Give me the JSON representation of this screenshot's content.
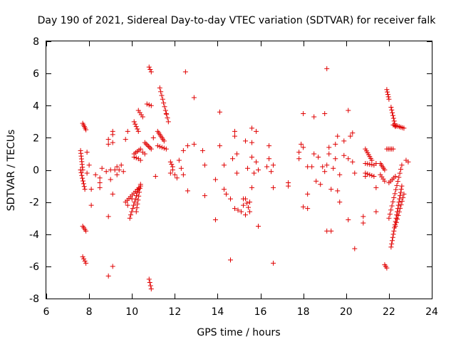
{
  "chart_data": {
    "type": "scatter",
    "title": "Day 190 of 2021, Sidereal Day-to-day VTEC variation (SDTVAR) for receiver falk",
    "xlabel": "GPS time / hours",
    "ylabel": "SDTVAR / TECUs",
    "xlim": [
      6,
      24
    ],
    "ylim": [
      -8,
      8
    ],
    "xticks": [
      6,
      8,
      10,
      12,
      14,
      16,
      18,
      20,
      22,
      24
    ],
    "yticks": [
      -8,
      -6,
      -4,
      -2,
      0,
      2,
      4,
      6,
      8
    ],
    "marker": "plus",
    "series_color": "#e00000",
    "segments": [
      {
        "x0": 7.6,
        "y0": 1.2,
        "x1": 7.7,
        "y1": 0.0,
        "n": 8
      },
      {
        "x0": 7.6,
        "y0": 0.0,
        "x1": 7.8,
        "y1": -1.2,
        "n": 8
      },
      {
        "x0": 7.7,
        "y0": 2.9,
        "x1": 7.85,
        "y1": 2.5,
        "n": 5
      },
      {
        "x0": 7.7,
        "y0": -3.5,
        "x1": 7.85,
        "y1": -3.8,
        "n": 4
      },
      {
        "x0": 7.7,
        "y0": -5.4,
        "x1": 7.85,
        "y1": -5.8,
        "n": 4
      },
      {
        "x0": 9.7,
        "y0": -2.0,
        "x1": 10.4,
        "y1": -1.0,
        "n": 10
      },
      {
        "x0": 9.9,
        "y0": -3.0,
        "x1": 10.3,
        "y1": -1.2,
        "n": 10
      },
      {
        "x0": 10.2,
        "y0": -2.6,
        "x1": 10.4,
        "y1": -0.9,
        "n": 8
      },
      {
        "x0": 10.1,
        "y0": 1.0,
        "x1": 10.4,
        "y1": 1.3,
        "n": 5
      },
      {
        "x0": 10.1,
        "y0": 0.8,
        "x1": 10.3,
        "y1": 0.7,
        "n": 3
      },
      {
        "x0": 10.1,
        "y0": 3.0,
        "x1": 10.3,
        "y1": 2.4,
        "n": 5
      },
      {
        "x0": 10.3,
        "y0": 3.7,
        "x1": 10.5,
        "y1": 3.3,
        "n": 4
      },
      {
        "x0": 10.6,
        "y0": 1.7,
        "x1": 10.9,
        "y1": 1.3,
        "n": 6
      },
      {
        "x0": 10.7,
        "y0": 4.1,
        "x1": 10.9,
        "y1": 4.0,
        "n": 3
      },
      {
        "x0": 10.8,
        "y0": 6.4,
        "x1": 10.9,
        "y1": 6.1,
        "n": 3
      },
      {
        "x0": 10.8,
        "y0": -6.8,
        "x1": 10.9,
        "y1": -7.4,
        "n": 4
      },
      {
        "x0": 11.2,
        "y0": 2.4,
        "x1": 11.5,
        "y1": 1.8,
        "n": 7
      },
      {
        "x0": 11.3,
        "y0": 5.1,
        "x1": 11.7,
        "y1": 3.0,
        "n": 10
      },
      {
        "x0": 11.2,
        "y0": 1.5,
        "x1": 11.6,
        "y1": 1.3,
        "n": 5
      },
      {
        "x0": 11.8,
        "y0": 0.5,
        "x1": 11.9,
        "y1": 0.2,
        "n": 3
      },
      {
        "x0": 15.3,
        "y0": -1.8,
        "x1": 15.5,
        "y1": -2.6,
        "n": 4
      },
      {
        "x0": 14.8,
        "y0": -2.4,
        "x1": 15.1,
        "y1": -2.6,
        "n": 3
      },
      {
        "x0": 20.9,
        "y0": 1.3,
        "x1": 21.2,
        "y1": 0.6,
        "n": 7
      },
      {
        "x0": 20.9,
        "y0": -0.2,
        "x1": 21.3,
        "y1": -0.4,
        "n": 5
      },
      {
        "x0": 20.9,
        "y0": 0.4,
        "x1": 21.3,
        "y1": 0.3,
        "n": 5
      },
      {
        "x0": 21.6,
        "y0": 0.4,
        "x1": 21.8,
        "y1": 0.0,
        "n": 5
      },
      {
        "x0": 21.6,
        "y0": -0.3,
        "x1": 21.8,
        "y1": -0.7,
        "n": 4
      },
      {
        "x0": 21.9,
        "y0": 5.0,
        "x1": 22.0,
        "y1": 4.4,
        "n": 5
      },
      {
        "x0": 22.1,
        "y0": 3.9,
        "x1": 22.3,
        "y1": 2.7,
        "n": 8
      },
      {
        "x0": 22.2,
        "y0": 2.8,
        "x1": 22.7,
        "y1": 2.6,
        "n": 8
      },
      {
        "x0": 21.9,
        "y0": 1.3,
        "x1": 22.2,
        "y1": 1.3,
        "n": 5
      },
      {
        "x0": 22.1,
        "y0": -4.8,
        "x1": 22.6,
        "y1": -1.0,
        "n": 20
      },
      {
        "x0": 22.0,
        "y0": -3.0,
        "x1": 22.6,
        "y1": 0.3,
        "n": 14
      },
      {
        "x0": 22.0,
        "y0": -0.8,
        "x1": 22.3,
        "y1": -0.4,
        "n": 5
      },
      {
        "x0": 22.3,
        "y0": -3.5,
        "x1": 22.7,
        "y1": -1.5,
        "n": 10
      },
      {
        "x0": 21.8,
        "y0": -5.9,
        "x1": 21.9,
        "y1": -6.1,
        "n": 3
      }
    ],
    "points": [
      [
        7.9,
        1.1
      ],
      [
        7.9,
        -0.2
      ],
      [
        8.0,
        0.3
      ],
      [
        8.1,
        -1.2
      ],
      [
        8.1,
        -2.2
      ],
      [
        8.3,
        -0.3
      ],
      [
        8.5,
        -0.5
      ],
      [
        8.5,
        -0.8
      ],
      [
        8.5,
        -1.1
      ],
      [
        8.6,
        0.1
      ],
      [
        8.8,
        -0.1
      ],
      [
        8.9,
        1.9
      ],
      [
        8.9,
        1.6
      ],
      [
        8.9,
        -2.9
      ],
      [
        8.9,
        -6.6
      ],
      [
        9.0,
        -0.6
      ],
      [
        9.0,
        0.0
      ],
      [
        9.1,
        2.4
      ],
      [
        9.1,
        2.2
      ],
      [
        9.1,
        1.7
      ],
      [
        9.1,
        -1.5
      ],
      [
        9.1,
        -6.0
      ],
      [
        9.2,
        0.0
      ],
      [
        9.3,
        0.2
      ],
      [
        9.3,
        -0.3
      ],
      [
        9.4,
        0.0
      ],
      [
        9.5,
        0.3
      ],
      [
        9.6,
        -0.1
      ],
      [
        9.7,
        1.9
      ],
      [
        9.8,
        2.4
      ],
      [
        9.8,
        -2.2
      ],
      [
        10.0,
        -1.8
      ],
      [
        10.4,
        0.6
      ],
      [
        10.5,
        1.1
      ],
      [
        10.6,
        1.0
      ],
      [
        11.0,
        2.0
      ],
      [
        11.1,
        -0.4
      ],
      [
        11.6,
        3.5
      ],
      [
        11.8,
        -0.2
      ],
      [
        11.9,
        0.0
      ],
      [
        12.0,
        -0.3
      ],
      [
        12.1,
        -0.5
      ],
      [
        12.2,
        0.6
      ],
      [
        12.3,
        0.1
      ],
      [
        12.4,
        -0.3
      ],
      [
        12.4,
        1.2
      ],
      [
        12.5,
        6.1
      ],
      [
        12.6,
        1.5
      ],
      [
        12.6,
        -1.3
      ],
      [
        12.9,
        4.5
      ],
      [
        12.9,
        1.6
      ],
      [
        13.3,
        1.2
      ],
      [
        13.4,
        0.3
      ],
      [
        13.4,
        -1.6
      ],
      [
        13.9,
        -0.6
      ],
      [
        13.9,
        -3.1
      ],
      [
        14.1,
        3.6
      ],
      [
        14.1,
        1.5
      ],
      [
        14.3,
        0.3
      ],
      [
        14.3,
        -1.2
      ],
      [
        14.4,
        -1.5
      ],
      [
        14.6,
        -1.8
      ],
      [
        14.6,
        -5.6
      ],
      [
        14.7,
        0.7
      ],
      [
        14.8,
        2.4
      ],
      [
        14.8,
        2.1
      ],
      [
        14.9,
        1.0
      ],
      [
        14.9,
        -0.2
      ],
      [
        15.2,
        -1.8
      ],
      [
        15.2,
        -2.2
      ],
      [
        15.3,
        -2.8
      ],
      [
        15.3,
        1.8
      ],
      [
        15.4,
        0.1
      ],
      [
        15.5,
        -2.0
      ],
      [
        15.6,
        2.6
      ],
      [
        15.6,
        1.7
      ],
      [
        15.6,
        0.8
      ],
      [
        15.6,
        -1.1
      ],
      [
        15.7,
        -0.2
      ],
      [
        15.8,
        2.4
      ],
      [
        15.8,
        0.5
      ],
      [
        15.9,
        -3.5
      ],
      [
        15.9,
        0.0
      ],
      [
        16.3,
        0.2
      ],
      [
        16.4,
        1.5
      ],
      [
        16.4,
        0.7
      ],
      [
        16.5,
        -0.1
      ],
      [
        16.6,
        0.3
      ],
      [
        16.6,
        -1.1
      ],
      [
        16.6,
        -5.8
      ],
      [
        17.3,
        -0.8
      ],
      [
        17.3,
        -1.0
      ],
      [
        17.8,
        1.1
      ],
      [
        17.8,
        0.7
      ],
      [
        17.9,
        1.6
      ],
      [
        18.0,
        3.5
      ],
      [
        18.0,
        1.4
      ],
      [
        18.0,
        -2.3
      ],
      [
        18.2,
        -1.5
      ],
      [
        18.2,
        -2.4
      ],
      [
        18.2,
        0.2
      ],
      [
        18.4,
        0.2
      ],
      [
        18.5,
        3.3
      ],
      [
        18.5,
        1.0
      ],
      [
        18.6,
        -0.7
      ],
      [
        18.7,
        0.8
      ],
      [
        18.8,
        -0.9
      ],
      [
        18.9,
        0.2
      ],
      [
        19.0,
        3.5
      ],
      [
        19.0,
        -0.1
      ],
      [
        19.1,
        6.3
      ],
      [
        19.1,
        0.3
      ],
      [
        19.1,
        -3.8
      ],
      [
        19.2,
        1.4
      ],
      [
        19.2,
        1.0
      ],
      [
        19.3,
        -3.8
      ],
      [
        19.3,
        -1.2
      ],
      [
        19.4,
        0.1
      ],
      [
        19.5,
        1.6
      ],
      [
        19.5,
        0.7
      ],
      [
        19.6,
        2.1
      ],
      [
        19.6,
        -1.3
      ],
      [
        19.7,
        -0.3
      ],
      [
        19.7,
        -2.0
      ],
      [
        19.9,
        1.8
      ],
      [
        19.9,
        0.9
      ],
      [
        20.1,
        3.7
      ],
      [
        20.1,
        0.7
      ],
      [
        20.1,
        -3.1
      ],
      [
        20.2,
        2.1
      ],
      [
        20.3,
        2.3
      ],
      [
        20.3,
        0.5
      ],
      [
        20.4,
        -0.2
      ],
      [
        20.4,
        -4.9
      ],
      [
        20.8,
        -2.9
      ],
      [
        20.8,
        -3.3
      ],
      [
        20.9,
        -0.4
      ],
      [
        21.4,
        0.4
      ],
      [
        21.4,
        -1.1
      ],
      [
        21.4,
        -2.6
      ],
      [
        22.9,
        0.5
      ],
      [
        22.8,
        0.6
      ]
    ]
  }
}
